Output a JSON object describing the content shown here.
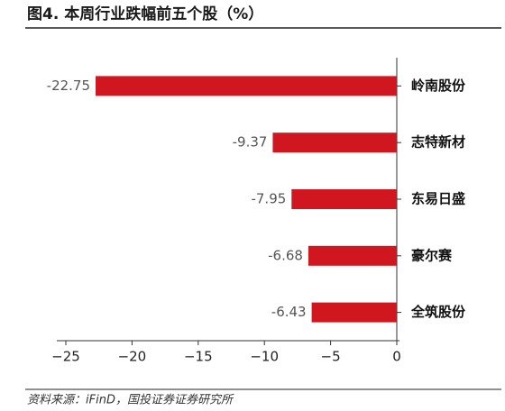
{
  "chart_data": {
    "type": "bar",
    "orientation": "horizontal",
    "title": "图4. 本周行业跌幅前五个股（%）",
    "source": "资料来源：iFinD，国投证券证券研究所",
    "categories": [
      "岭南股份",
      "志特新材",
      "东易日盛",
      "豪尔赛",
      "全筑股份"
    ],
    "values": [
      -22.75,
      -9.37,
      -7.95,
      -6.68,
      -6.43
    ],
    "color": "#d0161e",
    "xlim": [
      -25,
      0
    ],
    "xticks": [
      {
        "value": -25,
        "label": "−25"
      },
      {
        "value": -20,
        "label": "−20"
      },
      {
        "value": -15,
        "label": "−15"
      },
      {
        "value": -10,
        "label": "−10"
      },
      {
        "value": -5,
        "label": "−5"
      },
      0
    ]
  }
}
